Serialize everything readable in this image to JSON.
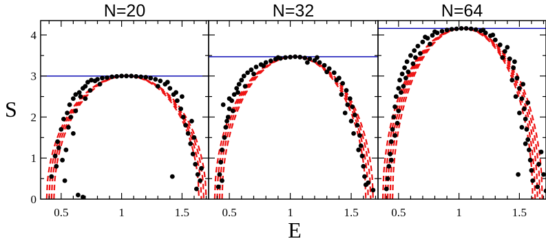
{
  "chart_data": {
    "type": "scatter",
    "xlabel": "E",
    "ylabel": "S",
    "colors": {
      "points": "#000000",
      "reference_line": "#0a0ab4",
      "fit_curves": "#ee1111"
    },
    "panels": [
      {
        "title": "N=20",
        "xlim": [
          0.33,
          1.72
        ],
        "ylim": [
          0,
          4.35
        ],
        "x_ticks": [
          "0.5",
          "1",
          "1.5"
        ],
        "y_ticks": [
          "0",
          "1",
          "2",
          "3",
          "4"
        ],
        "max_entropy_line": 3.0,
        "fit_curves": [
          {
            "center": 1.04,
            "half_width": 0.66,
            "peak": 3.0
          },
          {
            "center": 1.04,
            "half_width": 0.64,
            "peak": 3.0
          },
          {
            "center": 1.04,
            "half_width": 0.62,
            "peak": 3.0
          },
          {
            "center": 1.04,
            "half_width": 0.6,
            "peak": 3.0
          }
        ],
        "points": [
          [
            0.42,
            0.55
          ],
          [
            0.45,
            1.05
          ],
          [
            0.47,
            1.4
          ],
          [
            0.5,
            1.7
          ],
          [
            0.48,
            1.25
          ],
          [
            0.52,
            1.95
          ],
          [
            0.55,
            2.1
          ],
          [
            0.57,
            2.3
          ],
          [
            0.6,
            2.45
          ],
          [
            0.62,
            2.55
          ],
          [
            0.58,
            2.0
          ],
          [
            0.56,
            1.75
          ],
          [
            0.6,
            1.6
          ],
          [
            0.54,
            1.2
          ],
          [
            0.53,
            0.45
          ],
          [
            0.51,
            0.95
          ],
          [
            0.65,
            2.6
          ],
          [
            0.68,
            2.7
          ],
          [
            0.7,
            2.75
          ],
          [
            0.66,
            2.5
          ],
          [
            0.72,
            2.85
          ],
          [
            0.75,
            2.9
          ],
          [
            0.78,
            2.88
          ],
          [
            0.8,
            2.92
          ],
          [
            0.84,
            2.95
          ],
          [
            0.88,
            2.96
          ],
          [
            0.92,
            2.98
          ],
          [
            0.96,
            2.99
          ],
          [
            1.0,
            3.0
          ],
          [
            1.04,
            3.0
          ],
          [
            1.08,
            3.0
          ],
          [
            1.12,
            2.99
          ],
          [
            1.16,
            2.98
          ],
          [
            1.2,
            2.97
          ],
          [
            1.24,
            2.95
          ],
          [
            1.28,
            2.92
          ],
          [
            1.32,
            2.88
          ],
          [
            1.36,
            2.8
          ],
          [
            1.4,
            2.7
          ],
          [
            1.43,
            2.55
          ],
          [
            1.46,
            2.4
          ],
          [
            1.49,
            2.2
          ],
          [
            1.51,
            2.0
          ],
          [
            1.53,
            1.8
          ],
          [
            1.55,
            1.6
          ],
          [
            1.57,
            1.35
          ],
          [
            1.59,
            1.1
          ],
          [
            1.61,
            0.85
          ],
          [
            1.63,
            0.6
          ],
          [
            1.65,
            0.45
          ],
          [
            1.6,
            1.5
          ],
          [
            1.58,
            1.9
          ],
          [
            1.5,
            2.5
          ],
          [
            1.45,
            2.6
          ],
          [
            1.38,
            2.85
          ],
          [
            0.64,
            0.1
          ],
          [
            0.68,
            0.05
          ],
          [
            0.62,
            2.15
          ],
          [
            0.7,
            2.45
          ],
          [
            0.74,
            2.65
          ],
          [
            0.82,
            2.8
          ],
          [
            1.3,
            2.75
          ],
          [
            1.42,
            0.55
          ],
          [
            1.62,
            0.25
          ],
          [
            0.46,
            0.8
          ],
          [
            1.66,
            0.75
          ]
        ]
      },
      {
        "title": "N=32",
        "xlim": [
          0.33,
          1.72
        ],
        "ylim": [
          0,
          4.35
        ],
        "x_ticks": [
          "0.5",
          "1",
          "1.5"
        ],
        "y_ticks": [],
        "max_entropy_line": 3.47,
        "fit_curves": [
          {
            "center": 1.03,
            "half_width": 0.65,
            "peak": 3.47
          },
          {
            "center": 1.03,
            "half_width": 0.63,
            "peak": 3.47
          },
          {
            "center": 1.03,
            "half_width": 0.61,
            "peak": 3.47
          },
          {
            "center": 1.03,
            "half_width": 0.59,
            "peak": 3.47
          }
        ],
        "points": [
          [
            0.41,
            0.3
          ],
          [
            0.42,
            0.6
          ],
          [
            0.43,
            0.9
          ],
          [
            0.44,
            1.2
          ],
          [
            0.46,
            1.5
          ],
          [
            0.47,
            1.75
          ],
          [
            0.49,
            2.0
          ],
          [
            0.5,
            2.2
          ],
          [
            0.52,
            2.4
          ],
          [
            0.54,
            2.55
          ],
          [
            0.56,
            2.7
          ],
          [
            0.58,
            2.8
          ],
          [
            0.6,
            2.9
          ],
          [
            0.62,
            3.0
          ],
          [
            0.65,
            3.08
          ],
          [
            0.68,
            3.15
          ],
          [
            0.72,
            3.22
          ],
          [
            0.76,
            3.28
          ],
          [
            0.8,
            3.33
          ],
          [
            0.84,
            3.37
          ],
          [
            0.88,
            3.41
          ],
          [
            0.92,
            3.43
          ],
          [
            0.96,
            3.45
          ],
          [
            1.0,
            3.46
          ],
          [
            1.04,
            3.47
          ],
          [
            1.08,
            3.46
          ],
          [
            1.12,
            3.44
          ],
          [
            1.16,
            3.42
          ],
          [
            1.2,
            3.38
          ],
          [
            1.24,
            3.33
          ],
          [
            1.28,
            3.26
          ],
          [
            1.32,
            3.18
          ],
          [
            1.36,
            3.08
          ],
          [
            1.4,
            2.95
          ],
          [
            1.43,
            2.82
          ],
          [
            1.46,
            2.65
          ],
          [
            1.49,
            2.45
          ],
          [
            1.51,
            2.25
          ],
          [
            1.53,
            2.05
          ],
          [
            1.55,
            1.8
          ],
          [
            1.57,
            1.55
          ],
          [
            1.58,
            1.3
          ],
          [
            1.59,
            1.05
          ],
          [
            1.6,
            0.8
          ],
          [
            1.61,
            0.55
          ],
          [
            1.62,
            0.35
          ],
          [
            0.48,
            1.9
          ],
          [
            0.5,
            2.45
          ],
          [
            0.53,
            2.15
          ],
          [
            0.57,
            2.6
          ],
          [
            0.63,
            2.75
          ],
          [
            0.7,
            3.05
          ],
          [
            0.78,
            3.25
          ],
          [
            1.3,
            3.1
          ],
          [
            1.38,
            2.9
          ],
          [
            1.42,
            2.55
          ],
          [
            1.47,
            2.3
          ],
          [
            1.52,
            1.6
          ],
          [
            1.56,
            1.2
          ],
          [
            1.5,
            1.9
          ],
          [
            1.45,
            2.1
          ],
          [
            1.68,
            0.22
          ],
          [
            1.64,
            0.4
          ],
          [
            0.45,
            2.3
          ],
          [
            0.44,
            0.45
          ],
          [
            1.22,
            3.45
          ],
          [
            0.9,
            3.45
          ],
          [
            1.14,
            3.33
          ]
        ]
      },
      {
        "title": "N=64",
        "xlim": [
          0.33,
          1.72
        ],
        "ylim": [
          0,
          4.35
        ],
        "x_ticks": [
          "0.5",
          "1",
          "1.5"
        ],
        "y_ticks": [],
        "max_entropy_line": 4.16,
        "fit_curves": [
          {
            "center": 1.03,
            "half_width": 0.66,
            "peak": 4.16
          },
          {
            "center": 1.03,
            "half_width": 0.64,
            "peak": 4.16
          },
          {
            "center": 1.03,
            "half_width": 0.62,
            "peak": 4.16
          },
          {
            "center": 1.03,
            "half_width": 0.6,
            "peak": 4.16
          },
          {
            "center": 1.03,
            "half_width": 0.58,
            "peak": 4.16
          }
        ],
        "points": [
          [
            0.4,
            0.25
          ],
          [
            0.41,
            0.5
          ],
          [
            0.42,
            0.8
          ],
          [
            0.43,
            1.1
          ],
          [
            0.44,
            1.4
          ],
          [
            0.45,
            1.7
          ],
          [
            0.46,
            2.0
          ],
          [
            0.47,
            2.25
          ],
          [
            0.48,
            2.5
          ],
          [
            0.5,
            2.7
          ],
          [
            0.51,
            2.9
          ],
          [
            0.53,
            3.05
          ],
          [
            0.55,
            3.2
          ],
          [
            0.57,
            3.35
          ],
          [
            0.6,
            3.5
          ],
          [
            0.63,
            3.62
          ],
          [
            0.66,
            3.73
          ],
          [
            0.7,
            3.83
          ],
          [
            0.74,
            3.92
          ],
          [
            0.78,
            3.99
          ],
          [
            0.82,
            4.05
          ],
          [
            0.86,
            4.09
          ],
          [
            0.9,
            4.12
          ],
          [
            0.94,
            4.14
          ],
          [
            0.98,
            4.15
          ],
          [
            1.02,
            4.16
          ],
          [
            1.06,
            4.16
          ],
          [
            1.1,
            4.15
          ],
          [
            1.14,
            4.13
          ],
          [
            1.18,
            4.1
          ],
          [
            1.22,
            4.05
          ],
          [
            1.26,
            3.98
          ],
          [
            1.3,
            3.88
          ],
          [
            1.34,
            3.76
          ],
          [
            1.38,
            3.6
          ],
          [
            1.42,
            3.42
          ],
          [
            1.45,
            3.2
          ],
          [
            1.48,
            2.95
          ],
          [
            1.5,
            2.7
          ],
          [
            1.52,
            2.45
          ],
          [
            1.54,
            2.2
          ],
          [
            1.55,
            1.95
          ],
          [
            1.56,
            1.7
          ],
          [
            1.57,
            1.45
          ],
          [
            1.58,
            1.2
          ],
          [
            1.59,
            0.95
          ],
          [
            1.6,
            0.7
          ],
          [
            1.61,
            0.45
          ],
          [
            0.49,
            1.85
          ],
          [
            0.52,
            2.6
          ],
          [
            0.56,
            2.95
          ],
          [
            0.62,
            3.3
          ],
          [
            0.68,
            3.55
          ],
          [
            0.76,
            3.78
          ],
          [
            1.36,
            3.45
          ],
          [
            1.44,
            2.9
          ],
          [
            1.47,
            2.5
          ],
          [
            1.5,
            2.1
          ],
          [
            1.52,
            1.75
          ],
          [
            1.55,
            1.35
          ],
          [
            1.49,
            0.6
          ],
          [
            1.66,
            0.85
          ],
          [
            1.68,
            1.15
          ],
          [
            1.7,
            0.6
          ],
          [
            1.65,
            0.3
          ],
          [
            1.72,
            0.2
          ],
          [
            0.47,
            1.55
          ],
          [
            0.5,
            2.15
          ],
          [
            0.54,
            2.75
          ],
          [
            0.58,
            3.1
          ],
          [
            0.44,
            0.95
          ],
          [
            1.4,
            3.7
          ],
          [
            1.46,
            3.35
          ],
          [
            0.72,
            3.95
          ],
          [
            0.8,
            4.08
          ],
          [
            1.28,
            4.0
          ],
          [
            1.2,
            4.12
          ],
          [
            0.64,
            3.45
          ],
          [
            1.53,
            2.8
          ],
          [
            1.57,
            2.35
          ]
        ]
      }
    ]
  }
}
